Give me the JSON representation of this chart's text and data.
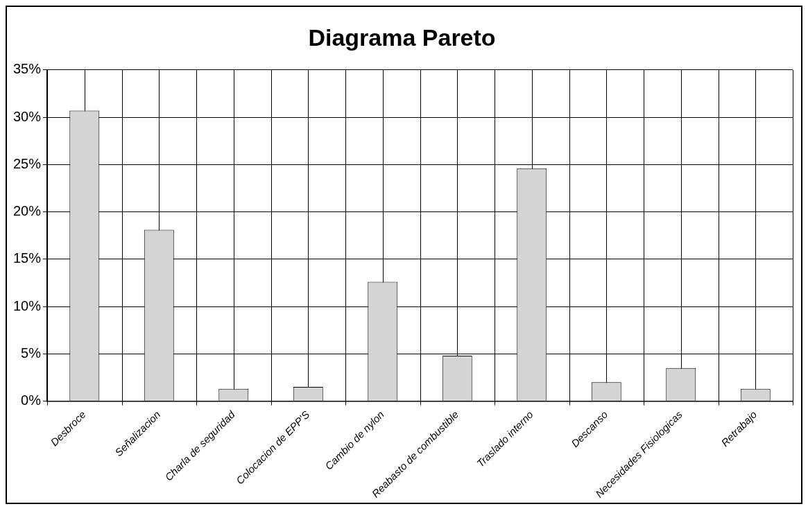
{
  "chart_data": {
    "type": "bar",
    "title": "Diagrama Pareto",
    "categories": [
      "Desbroce",
      "Señalizacion",
      "Charla de seguridad",
      "Colocacion de EPP'S",
      "Cambio de nylon",
      "Reabasto de combustible",
      "Traslado interno",
      "Descanso",
      "Necesidades Fisiologicas",
      "Retrabajo"
    ],
    "values": [
      30.7,
      18.1,
      1.3,
      1.5,
      12.6,
      4.8,
      24.6,
      2.0,
      3.5,
      1.3
    ],
    "color": "#d4d4d4",
    "ylim": [
      0,
      35
    ],
    "yticks": [
      {
        "value": 0,
        "label": "0%"
      },
      {
        "value": 5,
        "label": "5%"
      },
      {
        "value": 10,
        "label": "10%"
      },
      {
        "value": 15,
        "label": "15%"
      },
      {
        "value": 20,
        "label": "20%"
      },
      {
        "value": 25,
        "label": "25%"
      },
      {
        "value": 30,
        "label": "30%"
      },
      {
        "value": 35,
        "label": "35%"
      }
    ],
    "grid": true
  }
}
